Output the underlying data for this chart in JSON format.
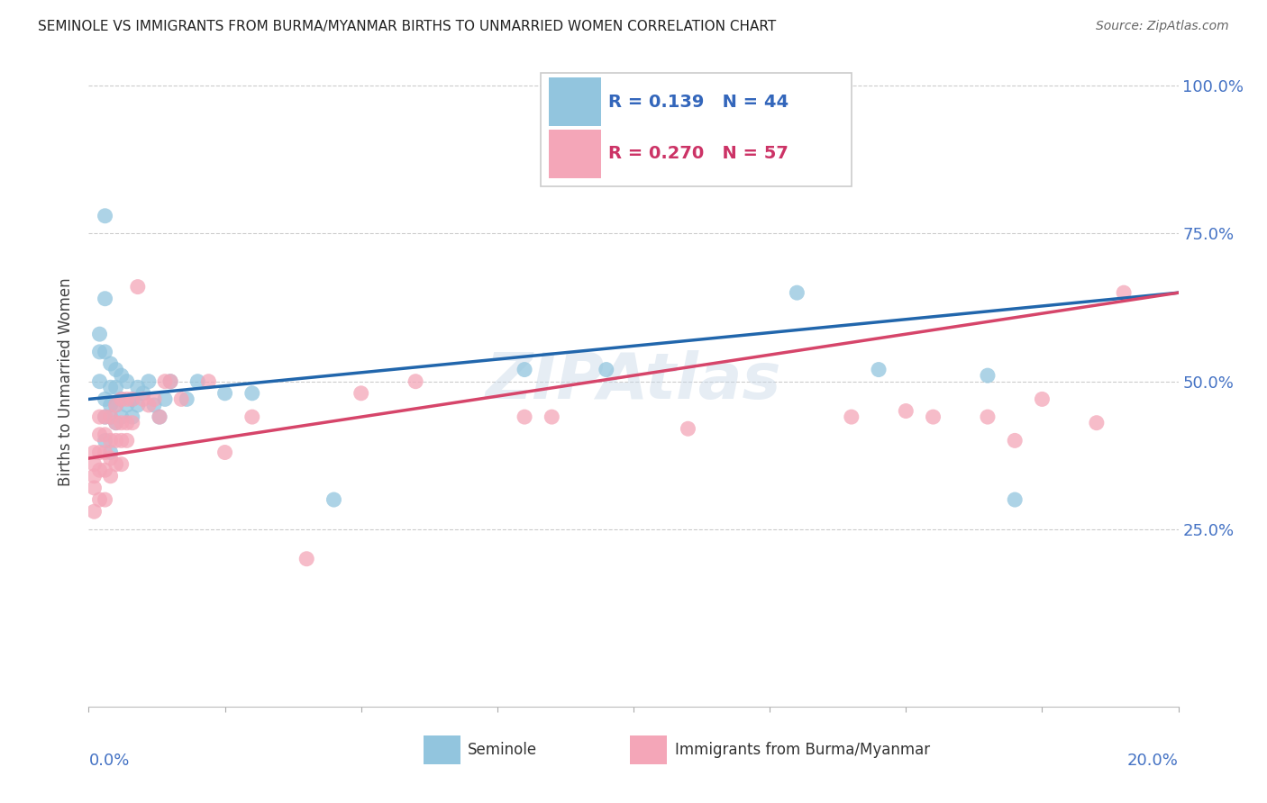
{
  "title": "SEMINOLE VS IMMIGRANTS FROM BURMA/MYANMAR BIRTHS TO UNMARRIED WOMEN CORRELATION CHART",
  "source": "Source: ZipAtlas.com",
  "ylabel": "Births to Unmarried Women",
  "xlim": [
    0.0,
    0.2
  ],
  "ylim": [
    -0.05,
    1.05
  ],
  "yticks": [
    0.25,
    0.5,
    0.75,
    1.0
  ],
  "ytick_labels": [
    "25.0%",
    "50.0%",
    "75.0%",
    "100.0%"
  ],
  "legend_blue_r": "R = 0.139",
  "legend_blue_n": "N = 44",
  "legend_pink_r": "R = 0.270",
  "legend_pink_n": "N = 57",
  "legend_label_blue": "Seminole",
  "legend_label_pink": "Immigrants from Burma/Myanmar",
  "blue_color": "#92c5de",
  "pink_color": "#f4a6b8",
  "trendline_blue": "#2166ac",
  "trendline_pink": "#d6456a",
  "blue_trend_x0": 0.0,
  "blue_trend_y0": 0.47,
  "blue_trend_x1": 0.2,
  "blue_trend_y1": 0.65,
  "pink_trend_x0": 0.0,
  "pink_trend_y0": 0.37,
  "pink_trend_x1": 0.2,
  "pink_trend_y1": 0.65,
  "blue_points_x": [
    0.002,
    0.002,
    0.002,
    0.003,
    0.003,
    0.003,
    0.003,
    0.003,
    0.003,
    0.004,
    0.004,
    0.004,
    0.004,
    0.004,
    0.005,
    0.005,
    0.005,
    0.005,
    0.006,
    0.006,
    0.006,
    0.007,
    0.007,
    0.008,
    0.008,
    0.009,
    0.009,
    0.01,
    0.011,
    0.012,
    0.013,
    0.014,
    0.015,
    0.018,
    0.02,
    0.025,
    0.03,
    0.045,
    0.08,
    0.095,
    0.13,
    0.145,
    0.165,
    0.17
  ],
  "blue_points_y": [
    0.58,
    0.55,
    0.5,
    0.78,
    0.64,
    0.55,
    0.47,
    0.44,
    0.4,
    0.53,
    0.49,
    0.46,
    0.44,
    0.38,
    0.52,
    0.49,
    0.46,
    0.43,
    0.51,
    0.47,
    0.44,
    0.5,
    0.46,
    0.47,
    0.44,
    0.49,
    0.46,
    0.48,
    0.5,
    0.46,
    0.44,
    0.47,
    0.5,
    0.47,
    0.5,
    0.48,
    0.48,
    0.3,
    0.52,
    0.52,
    0.65,
    0.52,
    0.51,
    0.3
  ],
  "pink_points_x": [
    0.001,
    0.001,
    0.001,
    0.001,
    0.001,
    0.002,
    0.002,
    0.002,
    0.002,
    0.002,
    0.003,
    0.003,
    0.003,
    0.003,
    0.003,
    0.004,
    0.004,
    0.004,
    0.004,
    0.005,
    0.005,
    0.005,
    0.005,
    0.006,
    0.006,
    0.006,
    0.006,
    0.007,
    0.007,
    0.007,
    0.008,
    0.008,
    0.009,
    0.01,
    0.011,
    0.012,
    0.013,
    0.014,
    0.015,
    0.017,
    0.022,
    0.025,
    0.03,
    0.04,
    0.05,
    0.06,
    0.08,
    0.085,
    0.11,
    0.14,
    0.15,
    0.155,
    0.165,
    0.17,
    0.175,
    0.185,
    0.19
  ],
  "pink_points_y": [
    0.38,
    0.36,
    0.34,
    0.32,
    0.28,
    0.44,
    0.41,
    0.38,
    0.35,
    0.3,
    0.44,
    0.41,
    0.38,
    0.35,
    0.3,
    0.44,
    0.4,
    0.37,
    0.34,
    0.46,
    0.43,
    0.4,
    0.36,
    0.47,
    0.43,
    0.4,
    0.36,
    0.47,
    0.43,
    0.4,
    0.47,
    0.43,
    0.66,
    0.47,
    0.46,
    0.47,
    0.44,
    0.5,
    0.5,
    0.47,
    0.5,
    0.38,
    0.44,
    0.2,
    0.48,
    0.5,
    0.44,
    0.44,
    0.42,
    0.44,
    0.45,
    0.44,
    0.44,
    0.4,
    0.47,
    0.43,
    0.65
  ]
}
